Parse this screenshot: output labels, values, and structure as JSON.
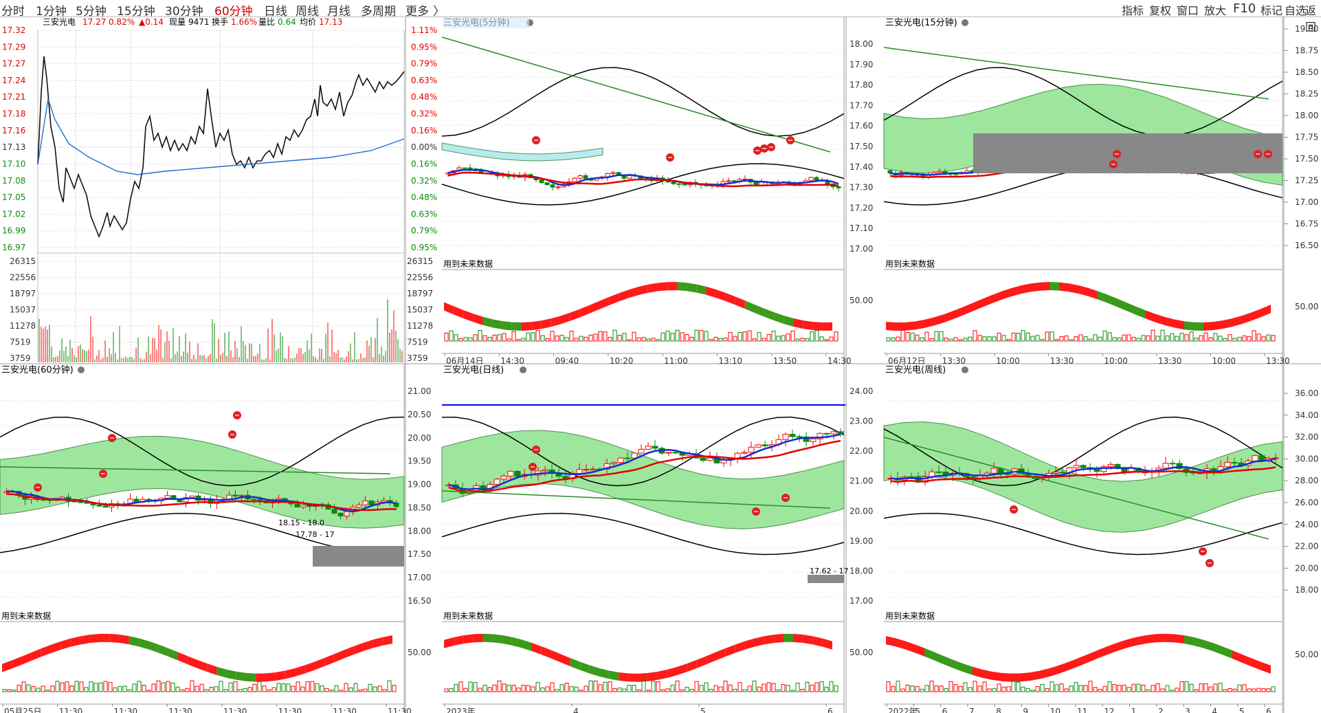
{
  "toolbar": {
    "left": [
      "分时",
      "1分钟",
      "5分钟",
      "15分钟",
      "30分钟",
      "60分钟",
      "日线",
      "周线",
      "月线",
      "多周期",
      "更多",
      "〉"
    ],
    "active": "60分钟",
    "right": [
      "指标",
      "复权",
      "窗口",
      "放大",
      "F10",
      "标记",
      "自选",
      "返回"
    ]
  },
  "stock": "三安光电",
  "minute": {
    "title": "三安光电",
    "price": "17.27",
    "pct": "0.82%",
    "chg": "▲0.14",
    "vol_label": "现量",
    "vol": "9471",
    "turnover_label": "换手",
    "turnover": "1.66%",
    "vratio_label": "量比",
    "vratio": "0.64",
    "avg_label": "均价",
    "avg": "17.13",
    "price_ticks": [
      "17.32",
      "17.29",
      "17.27",
      "17.24",
      "17.21",
      "17.18",
      "17.16",
      "17.13",
      "17.10",
      "17.08",
      "17.05",
      "17.02",
      "16.99",
      "16.97"
    ],
    "pct_ticks": [
      "1.11%",
      "0.95%",
      "0.79%",
      "0.63%",
      "0.48%",
      "0.32%",
      "0.16%",
      "0.00%",
      "0.16%",
      "0.32%",
      "0.48%",
      "0.63%",
      "0.79%",
      "0.95%"
    ],
    "vol_ticks": [
      "26315",
      "22556",
      "18797",
      "15037",
      "11278",
      "7519",
      "3759"
    ]
  },
  "panels": [
    {
      "title": "三安光电(5分钟)",
      "future_note": "用到未来数据",
      "y_ticks": [],
      "osc_tick": "",
      "x_ticks": [
        "06月14日",
        "14:30",
        "09:40",
        "10:20",
        "11:00",
        "13:10",
        "13:50",
        "14:30"
      ]
    },
    {
      "title": "三安光电(15分钟)",
      "future_note": "用到未来数据",
      "y_ticks": [
        "18.00",
        "17.90",
        "17.80",
        "17.70",
        "17.60",
        "17.50",
        "17.40",
        "17.30",
        "17.20",
        "17.10",
        "17.00"
      ],
      "osc_tick": "50.00",
      "x_ticks": [
        "06月12日",
        "13:30",
        "10:00",
        "13:30",
        "10:00",
        "13:30",
        "10:00",
        "13:30"
      ]
    },
    {
      "title": "三安光电(60分钟)",
      "future_note": "用到未来数据",
      "y_ticks": [],
      "osc_tick": "",
      "x_ticks": [
        "05月25日",
        "11:30",
        "11:30",
        "11:30",
        "11:30",
        "11:30",
        "11:30",
        "11:30"
      ],
      "annotations": [
        "18.15 - 18.0",
        "17.78 - 17"
      ]
    },
    {
      "title": "三安光电(日线)",
      "future_note": "用到未来数据",
      "y_ticks": [
        "21.00",
        "20.50",
        "20.00",
        "19.50",
        "19.00",
        "18.50",
        "18.00",
        "17.50",
        "17.00",
        "16.50"
      ],
      "osc_tick": "50.00",
      "x_ticks": [
        "2023年",
        "4",
        "5",
        "6"
      ],
      "annotations": [
        "17.62 - 17"
      ]
    },
    {
      "title": "三安光电(周线)",
      "future_note": "用到未来数据",
      "y_ticks": [
        "24.00",
        "23.00",
        "22.00",
        "21.00",
        "20.00",
        "19.00",
        "18.00",
        "17.00"
      ],
      "osc_tick": "50.00",
      "x_ticks": [
        "2022年",
        "5",
        "6",
        "7",
        "8",
        "9",
        "10",
        "11",
        "12",
        "1",
        "2",
        "3",
        "4",
        "5",
        "6"
      ]
    }
  ],
  "right_axis": {
    "top_ticks": [
      "19.00",
      "18.75",
      "18.50",
      "18.25",
      "18.00",
      "17.75",
      "17.50",
      "17.25",
      "17.00",
      "16.75",
      "16.50"
    ],
    "top_osc": "50.00",
    "bottom_ticks": [
      "36.00",
      "34.00",
      "32.00",
      "30.00",
      "28.00",
      "26.00",
      "24.00",
      "22.00",
      "20.00",
      "18.00"
    ],
    "bottom_osc": "50.00"
  },
  "colors": {
    "up": "#ff0000",
    "down": "#0a8a0a",
    "avg": "#1f6fd1",
    "grid": "#e2e2e2",
    "band": "#8ee28e",
    "cyan": "#a8e6ea"
  }
}
